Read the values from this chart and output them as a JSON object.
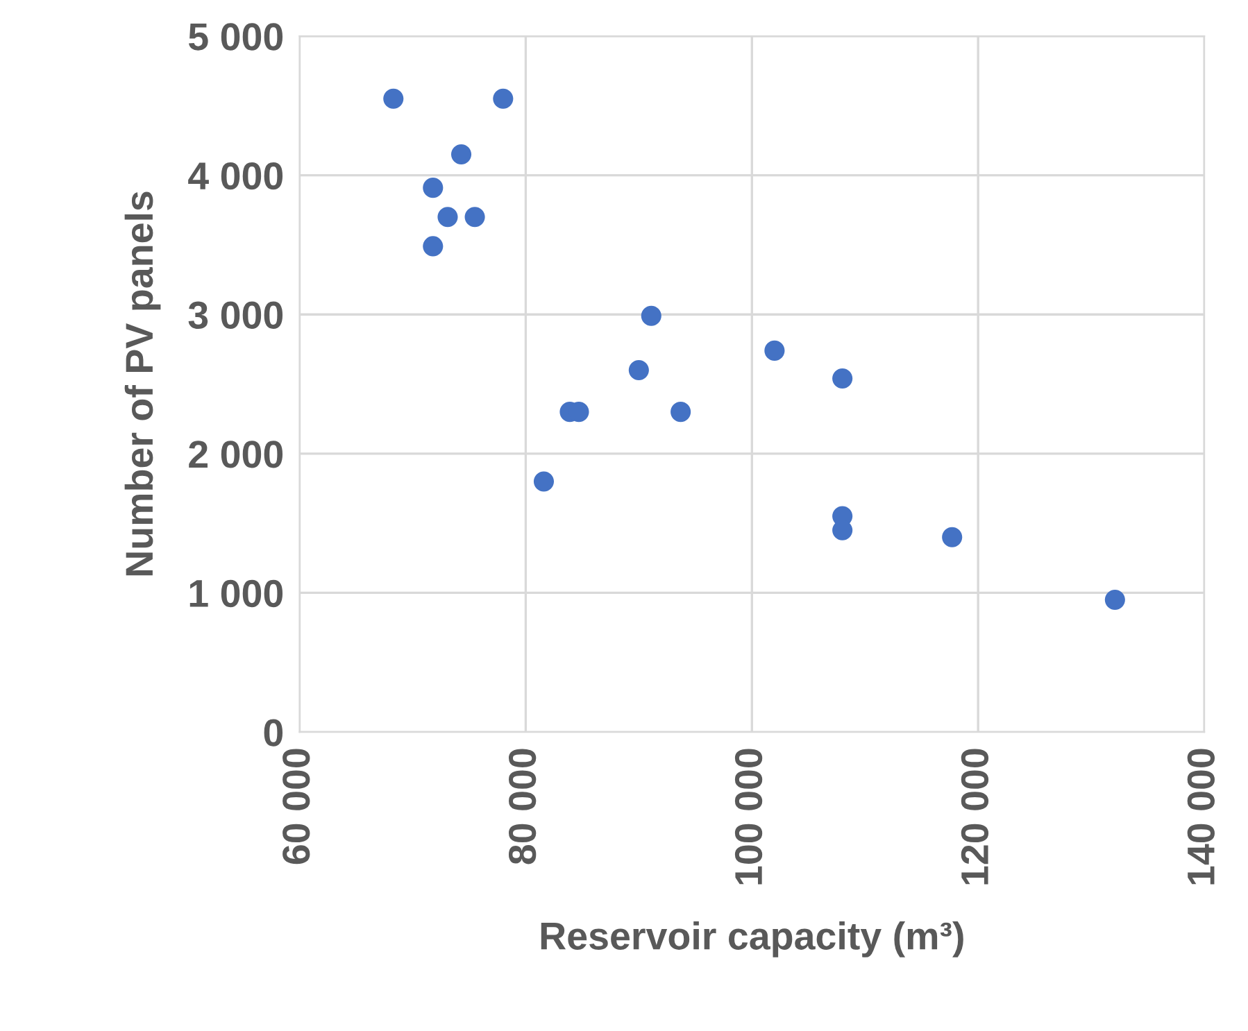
{
  "chart_data": {
    "type": "scatter",
    "xlabel": "Reservoir capacity (m³)",
    "ylabel": "Number of PV panels",
    "x": [
      68300,
      78000,
      74300,
      71800,
      73100,
      75500,
      71800,
      91100,
      102000,
      108000,
      90000,
      83900,
      84700,
      93700,
      81600,
      108000,
      108000,
      117700,
      132100
    ],
    "series": [
      {
        "color": "#4472c4",
        "values": [
          4550,
          4550,
          4150,
          3910,
          3700,
          3700,
          3490,
          2990,
          2740,
          2540,
          2600,
          2300,
          2300,
          2300,
          1800,
          1550,
          1450,
          1400,
          950
        ]
      }
    ],
    "xlim": [
      60000,
      140000
    ],
    "xticks": [
      {
        "value": 60000,
        "label": "60 000"
      },
      {
        "value": 80000,
        "label": "80 000"
      },
      {
        "value": 100000,
        "label": "100 000"
      },
      {
        "value": 120000,
        "label": "120 000"
      },
      {
        "value": 140000,
        "label": "140 000"
      }
    ],
    "ylim": [
      0,
      5000
    ],
    "yticks": [
      0,
      {
        "value": 1000,
        "label": "1 000"
      },
      {
        "value": 2000,
        "label": "2 000"
      },
      {
        "value": 3000,
        "label": "3 000"
      },
      {
        "value": 4000,
        "label": "4 000"
      },
      {
        "value": 5000,
        "label": "5 000"
      }
    ],
    "grid": true,
    "marker": "circle"
  }
}
